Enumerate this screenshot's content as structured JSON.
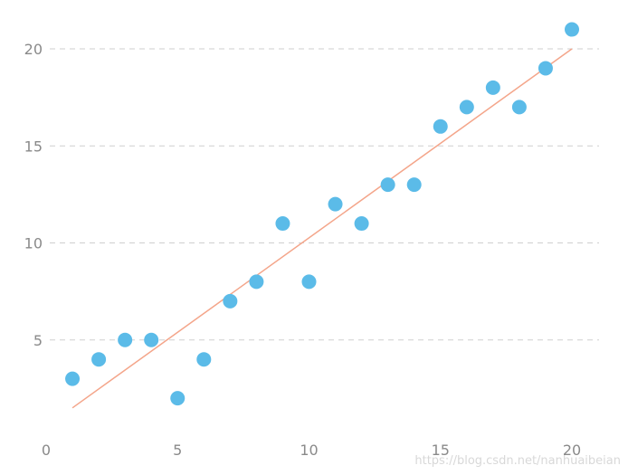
{
  "chart_data": {
    "type": "scatter",
    "title": "",
    "xlabel": "",
    "ylabel": "",
    "xlim": [
      0,
      21
    ],
    "ylim": [
      0,
      21.8
    ],
    "x_ticks": [
      0,
      5,
      10,
      15,
      20
    ],
    "y_ticks": [
      5,
      10,
      15,
      20
    ],
    "grid": "horizontal dashed",
    "series": [
      {
        "type": "scatter",
        "color": "#5bbbe8",
        "x": [
          1,
          2,
          3,
          4,
          5,
          6,
          7,
          8,
          9,
          10,
          11,
          12,
          13,
          14,
          15,
          16,
          17,
          18,
          19,
          20
        ],
        "y": [
          3,
          4,
          5,
          5,
          2,
          4,
          7,
          8,
          11,
          8,
          12,
          11,
          13,
          13,
          16,
          17,
          18,
          17,
          19,
          21
        ]
      },
      {
        "type": "line",
        "color": "#f4a58a",
        "x": [
          1,
          20
        ],
        "y": [
          1.5,
          20
        ]
      }
    ]
  },
  "watermark": "https://blog.csdn.net/nanhuaibeian"
}
